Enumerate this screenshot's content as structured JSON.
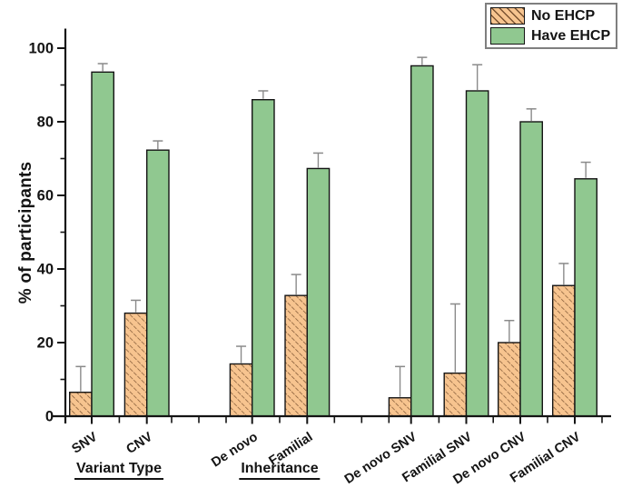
{
  "legend": {
    "items": [
      {
        "label": "No EHCP",
        "swatch": "hatched-orange"
      },
      {
        "label": "Have EHCP",
        "swatch": "solid-green"
      }
    ]
  },
  "colors": {
    "no_ehcp_fill": "#f7c48f",
    "no_ehcp_hatch": "#7a5230",
    "have_ehcp_fill": "#90c890",
    "bar_border": "#141414",
    "error_bar": "#8a8a8a",
    "axis": "#141414",
    "legend_border": "#7f7f7f"
  },
  "chart_data": {
    "type": "bar",
    "title": "",
    "xlabel": "",
    "ylabel": "% of participants",
    "ylim": [
      0,
      105
    ],
    "yticks": [
      0,
      20,
      40,
      60,
      80,
      100
    ],
    "grid": false,
    "legend_position": "top-right",
    "error_bars": "upper-only",
    "categories": [
      "SNV",
      "CNV",
      "De novo",
      "Familial",
      "De novo SNV",
      "Familial SNV",
      "De novo CNV",
      "Familial CNV"
    ],
    "groups": [
      {
        "label": "Variant Type",
        "categories": [
          "SNV",
          "CNV"
        ]
      },
      {
        "label": "Inheritance",
        "categories": [
          "De novo",
          "Familial"
        ]
      },
      {
        "label": "",
        "categories": [
          "De novo SNV",
          "Familial SNV",
          "De novo CNV",
          "Familial CNV"
        ]
      }
    ],
    "series": [
      {
        "name": "No EHCP",
        "values": [
          6.5,
          28,
          14.2,
          32.8,
          5,
          11.7,
          20,
          35.5
        ],
        "errors_up": [
          7,
          3.5,
          4.8,
          5.7,
          8.5,
          18.8,
          6,
          6
        ]
      },
      {
        "name": "Have EHCP",
        "values": [
          93.5,
          72.3,
          86,
          67.3,
          95.2,
          88.4,
          80,
          64.5
        ],
        "errors_up": [
          2.3,
          2.5,
          2.4,
          4.2,
          2.3,
          7.1,
          3.5,
          4.5
        ]
      }
    ]
  }
}
